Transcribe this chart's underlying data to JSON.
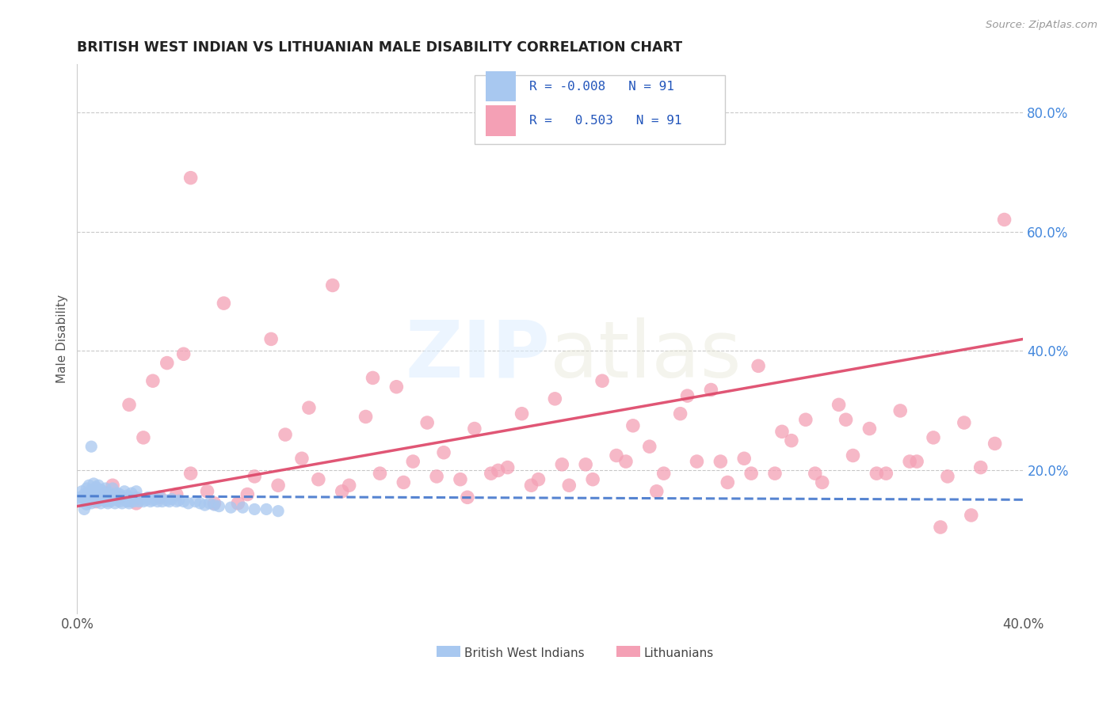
{
  "title": "BRITISH WEST INDIAN VS LITHUANIAN MALE DISABILITY CORRELATION CHART",
  "source": "Source: ZipAtlas.com",
  "ylabel": "Male Disability",
  "legend_r_values": [
    "-0.008",
    "0.503"
  ],
  "legend_n_values": [
    "91",
    "91"
  ],
  "xlim": [
    0.0,
    0.4
  ],
  "ylim": [
    -0.04,
    0.88
  ],
  "color_blue": "#a8c8f0",
  "color_pink": "#f4a0b5",
  "line_blue": "#4477cc",
  "line_pink": "#dd4466",
  "background": "#ffffff",
  "grid_color": "#bbbbbb",
  "bwi_x": [
    0.001,
    0.002,
    0.002,
    0.003,
    0.003,
    0.004,
    0.004,
    0.004,
    0.005,
    0.005,
    0.005,
    0.006,
    0.006,
    0.006,
    0.007,
    0.007,
    0.007,
    0.008,
    0.008,
    0.008,
    0.009,
    0.009,
    0.009,
    0.01,
    0.01,
    0.01,
    0.011,
    0.011,
    0.012,
    0.012,
    0.012,
    0.013,
    0.013,
    0.014,
    0.014,
    0.015,
    0.015,
    0.016,
    0.016,
    0.017,
    0.017,
    0.018,
    0.018,
    0.019,
    0.019,
    0.02,
    0.02,
    0.021,
    0.021,
    0.022,
    0.022,
    0.023,
    0.023,
    0.024,
    0.025,
    0.025,
    0.026,
    0.027,
    0.028,
    0.029,
    0.03,
    0.031,
    0.032,
    0.033,
    0.034,
    0.035,
    0.036,
    0.038,
    0.039,
    0.04,
    0.042,
    0.043,
    0.045,
    0.047,
    0.05,
    0.052,
    0.054,
    0.056,
    0.058,
    0.06,
    0.065,
    0.07,
    0.075,
    0.08,
    0.085,
    0.003,
    0.006,
    0.01,
    0.014,
    0.018,
    0.022
  ],
  "bwi_y": [
    0.155,
    0.148,
    0.165,
    0.152,
    0.16,
    0.143,
    0.158,
    0.17,
    0.15,
    0.162,
    0.175,
    0.145,
    0.155,
    0.168,
    0.153,
    0.165,
    0.178,
    0.148,
    0.158,
    0.172,
    0.15,
    0.162,
    0.175,
    0.145,
    0.155,
    0.168,
    0.152,
    0.165,
    0.148,
    0.158,
    0.17,
    0.145,
    0.155,
    0.162,
    0.15,
    0.158,
    0.17,
    0.145,
    0.158,
    0.15,
    0.162,
    0.148,
    0.16,
    0.145,
    0.155,
    0.152,
    0.165,
    0.148,
    0.158,
    0.145,
    0.155,
    0.15,
    0.162,
    0.148,
    0.155,
    0.165,
    0.148,
    0.152,
    0.148,
    0.15,
    0.155,
    0.148,
    0.15,
    0.152,
    0.148,
    0.155,
    0.148,
    0.15,
    0.148,
    0.152,
    0.148,
    0.15,
    0.148,
    0.145,
    0.148,
    0.145,
    0.142,
    0.145,
    0.142,
    0.14,
    0.138,
    0.138,
    0.135,
    0.135,
    0.132,
    0.135,
    0.24,
    0.16,
    0.148,
    0.155,
    0.148
  ],
  "lit_x": [
    0.008,
    0.012,
    0.018,
    0.022,
    0.028,
    0.032,
    0.038,
    0.042,
    0.048,
    0.055,
    0.062,
    0.068,
    0.075,
    0.082,
    0.088,
    0.095,
    0.102,
    0.108,
    0.115,
    0.122,
    0.128,
    0.135,
    0.142,
    0.148,
    0.155,
    0.162,
    0.168,
    0.175,
    0.182,
    0.188,
    0.195,
    0.202,
    0.208,
    0.215,
    0.222,
    0.228,
    0.235,
    0.242,
    0.248,
    0.255,
    0.262,
    0.268,
    0.275,
    0.282,
    0.288,
    0.295,
    0.302,
    0.308,
    0.315,
    0.322,
    0.328,
    0.335,
    0.342,
    0.348,
    0.355,
    0.362,
    0.368,
    0.375,
    0.382,
    0.388,
    0.015,
    0.025,
    0.035,
    0.045,
    0.058,
    0.072,
    0.085,
    0.098,
    0.112,
    0.125,
    0.138,
    0.152,
    0.165,
    0.178,
    0.192,
    0.205,
    0.218,
    0.232,
    0.245,
    0.258,
    0.272,
    0.285,
    0.298,
    0.312,
    0.325,
    0.338,
    0.352,
    0.365,
    0.378,
    0.392,
    0.048
  ],
  "lit_y": [
    0.148,
    0.162,
    0.155,
    0.31,
    0.255,
    0.35,
    0.38,
    0.16,
    0.195,
    0.165,
    0.48,
    0.145,
    0.19,
    0.42,
    0.26,
    0.22,
    0.185,
    0.51,
    0.175,
    0.29,
    0.195,
    0.34,
    0.215,
    0.28,
    0.23,
    0.185,
    0.27,
    0.195,
    0.205,
    0.295,
    0.185,
    0.32,
    0.175,
    0.21,
    0.35,
    0.225,
    0.275,
    0.24,
    0.195,
    0.295,
    0.215,
    0.335,
    0.18,
    0.22,
    0.375,
    0.195,
    0.25,
    0.285,
    0.18,
    0.31,
    0.225,
    0.27,
    0.195,
    0.3,
    0.215,
    0.255,
    0.19,
    0.28,
    0.205,
    0.245,
    0.175,
    0.145,
    0.155,
    0.395,
    0.145,
    0.16,
    0.175,
    0.305,
    0.165,
    0.355,
    0.18,
    0.19,
    0.155,
    0.2,
    0.175,
    0.21,
    0.185,
    0.215,
    0.165,
    0.325,
    0.215,
    0.195,
    0.265,
    0.195,
    0.285,
    0.195,
    0.215,
    0.105,
    0.125,
    0.62,
    0.69
  ]
}
